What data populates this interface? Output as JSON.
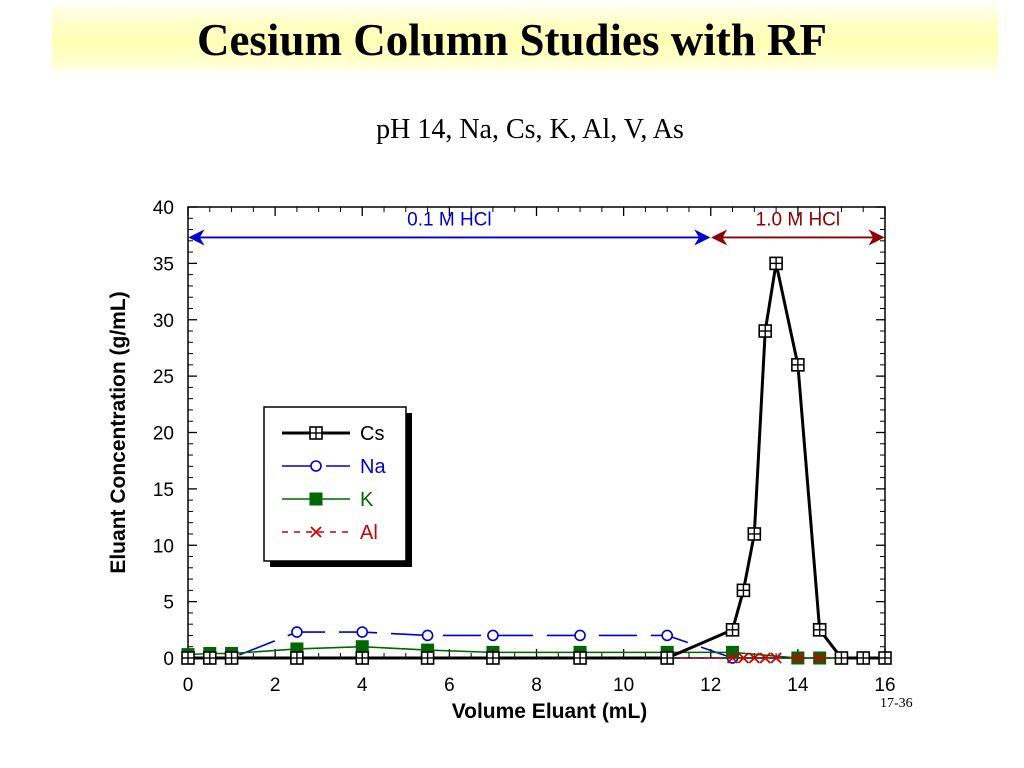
{
  "slide": {
    "title": "Cesium Column Studies with RF",
    "subtitle": "pH 14, Na, Cs, K, Al, V, As",
    "slide_number": "17-36"
  },
  "chart_data": {
    "type": "line",
    "xlabel": "Volume Eluant (mL)",
    "ylabel": "Eluant Concentration (g/mL)",
    "xlim": [
      0,
      16
    ],
    "ylim": [
      0,
      40
    ],
    "xticks": [
      0,
      2,
      4,
      6,
      8,
      10,
      12,
      14,
      16
    ],
    "yticks": [
      0,
      5,
      10,
      15,
      20,
      25,
      30,
      35,
      40
    ],
    "grid": false,
    "legend_placement": "center-left",
    "annotations": [
      {
        "text": "0.1 M HCl",
        "x_from": 0,
        "x_to": 12,
        "y": 37.3,
        "color": "#0000cc"
      },
      {
        "text": "1.0 M HCl",
        "x_from": 12,
        "x_to": 16,
        "y": 37.3,
        "color": "#8b0000"
      }
    ],
    "series": [
      {
        "name": "Cs",
        "color": "#000000",
        "marker": "square-plus",
        "line": "solid",
        "x": [
          0,
          0.5,
          1,
          2.5,
          4,
          5.5,
          7,
          9,
          11,
          12.5,
          12.75,
          13,
          13.25,
          13.5,
          14,
          14.5,
          15,
          15.5,
          16
        ],
        "y": [
          0,
          0,
          0,
          0,
          0,
          0,
          0,
          0,
          0,
          2.5,
          6,
          11,
          29,
          35,
          26,
          2.5,
          0,
          0,
          0
        ]
      },
      {
        "name": "Na",
        "color": "#0000cc",
        "marker": "circle-open",
        "line": "long-dash",
        "x": [
          0,
          0.5,
          1,
          2.5,
          4,
          5.5,
          7,
          9,
          11,
          12.5
        ],
        "y": [
          0,
          0,
          0,
          2.3,
          2.3,
          2.0,
          2.0,
          2.0,
          2.0,
          0
        ]
      },
      {
        "name": "K",
        "color": "#006600",
        "marker": "square-filled",
        "line": "solid",
        "x": [
          0,
          0.5,
          1,
          2.5,
          4,
          5.5,
          7,
          9,
          11,
          12.5,
          14,
          14.5,
          15,
          15.5,
          16
        ],
        "y": [
          0.3,
          0.4,
          0.4,
          0.8,
          1.0,
          0.7,
          0.5,
          0.5,
          0.5,
          0.5,
          0,
          0,
          0,
          0,
          0
        ]
      },
      {
        "name": "Al",
        "color": "#cc0000",
        "marker": "x",
        "line": "short-dash",
        "x": [
          0,
          0.5,
          1,
          2.5,
          4,
          5.5,
          7,
          9,
          11,
          12.5,
          12.75,
          13,
          13.25,
          13.5,
          14,
          14.5,
          15,
          15.5,
          16
        ],
        "y": [
          0,
          0,
          0,
          0,
          0,
          0,
          0,
          0,
          0,
          0,
          0,
          0,
          0,
          0,
          0,
          0,
          0,
          0,
          0
        ]
      }
    ]
  }
}
